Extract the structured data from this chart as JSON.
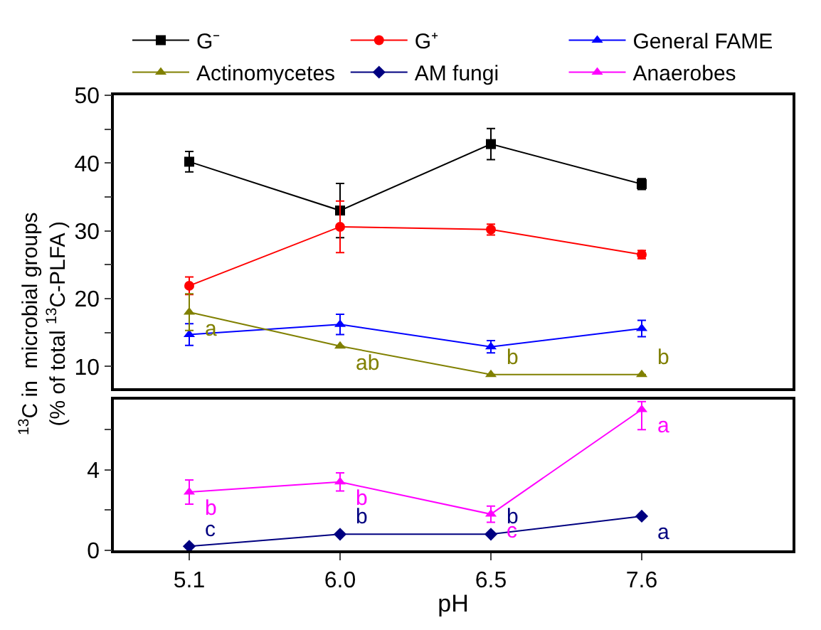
{
  "chart_data": [
    {
      "type": "line",
      "categories": [
        "5.1",
        "6.0",
        "6.5",
        "7.6"
      ],
      "ylabel": "$^{13}$C in  microbial groups\n(% of total $^{13}$C-PLFA )",
      "ylim": [
        6.8,
        50
      ],
      "yticks": [
        10,
        {
          "value": 15,
          "label": null
        },
        20,
        {
          "value": 25,
          "label": null
        },
        30,
        {
          "value": 35,
          "label": null
        },
        40,
        {
          "value": 45,
          "label": null
        },
        50
      ],
      "tick_labels": "y",
      "legend": "top",
      "series": [
        {
          "name": "G⁻",
          "color": "#000000",
          "marker": "square",
          "values": [
            40.2,
            33.0,
            42.8,
            36.9
          ],
          "errors": [
            1.5,
            4.0,
            2.3,
            0.8
          ]
        },
        {
          "name": "G⁺",
          "color": "#ff0000",
          "marker": "circle",
          "values": [
            21.9,
            30.6,
            30.2,
            26.5
          ],
          "errors": [
            1.3,
            3.8,
            0.8,
            0.6
          ]
        },
        {
          "name": "General FAME",
          "color": "#0000ff",
          "marker": "triangle",
          "values": [
            14.7,
            16.2,
            12.9,
            15.6
          ],
          "errors": [
            1.6,
            1.5,
            0.9,
            1.2
          ]
        },
        {
          "name": "Actinomycetes",
          "color": "#808000",
          "marker": "triangle",
          "values": [
            18.0,
            13.0,
            8.8,
            8.8
          ],
          "errors": [
            2.7,
            null,
            null,
            null
          ]
        }
      ],
      "annotations": [
        {
          "text": "a",
          "x": "5.1",
          "y": 18.0
        },
        {
          "text": "ab",
          "x": "6.0",
          "y": 13.0
        },
        {
          "text": "b",
          "x": "6.5",
          "y": 8.8
        },
        {
          "text": "b",
          "x": "7.6",
          "y": 8.8
        }
      ]
    },
    {
      "type": "line",
      "categories": [
        "5.1",
        "6.0",
        "6.5",
        "7.6"
      ],
      "xlabel": "pH",
      "ylim": [
        0,
        7.5
      ],
      "yticks": [
        0,
        {
          "value": 2,
          "label": null
        },
        4,
        {
          "value": 6,
          "label": null
        }
      ],
      "legend": "top",
      "series": [
        {
          "name": "AM fungi",
          "color": "#000080",
          "marker": "diamond",
          "values": [
            0.2,
            0.8,
            0.8,
            1.7
          ],
          "errors": [
            null,
            null,
            null,
            null
          ]
        },
        {
          "name": "Anaerobes",
          "color": "#ff00ff",
          "marker": "triangle",
          "values": [
            2.9,
            3.4,
            1.8,
            7.0
          ],
          "errors": [
            0.6,
            0.45,
            0.4,
            [
              6.0,
              7.4
            ]
          ]
        }
      ],
      "annotations": [
        {
          "text": "b",
          "x": "5.1",
          "y": 2.9
        },
        {
          "text": "b",
          "x": "6.0",
          "y": 3.4
        },
        {
          "text": "c",
          "x": "6.5",
          "y": 1.8
        },
        {
          "text": "a",
          "x": "7.6",
          "y": 7.0
        },
        {
          "text": "c",
          "x": "5.1",
          "y": 0.2
        },
        {
          "text": "b",
          "x": "6.0",
          "y": 0.8
        },
        {
          "text": "b",
          "x": "6.5",
          "y": 0.8
        },
        {
          "text": "a",
          "x": "7.6",
          "y": 1.7
        }
      ]
    }
  ]
}
